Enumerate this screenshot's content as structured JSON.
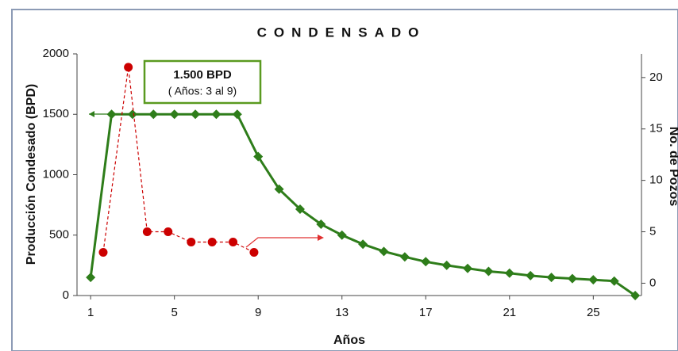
{
  "chart_data": {
    "type": "line",
    "title": "CONDENSADO",
    "x_label": "Años",
    "y_label": "Producción Condesado (BPD)",
    "y2_label": "No. de Pozos",
    "annotations": [
      "1.500 BPD",
      "( Años: 3 al 9)"
    ],
    "xlim": [
      0.35,
      27.3
    ],
    "xticks": [
      1,
      5,
      9,
      13,
      17,
      21,
      25
    ],
    "ylim": [
      0,
      2000
    ],
    "yticks": [
      0,
      500,
      1000,
      1500,
      2000
    ],
    "y2lim": [
      -1.2,
      22.3
    ],
    "y2ticks": [
      0,
      5,
      10,
      15,
      20
    ],
    "series": [
      {
        "color": "#2e7d1a",
        "marker": "diamond",
        "dashed": false,
        "x": [
          1,
          2,
          3,
          4,
          5,
          6,
          7,
          8,
          9,
          10,
          11,
          12,
          13,
          14,
          15,
          16,
          17,
          18,
          19,
          20,
          21,
          22,
          23,
          24,
          25,
          26,
          27
        ],
        "values": [
          150,
          1500,
          1500,
          1500,
          1500,
          1500,
          1500,
          1500,
          1150,
          880,
          715,
          590,
          500,
          425,
          365,
          320,
          280,
          250,
          225,
          200,
          185,
          165,
          150,
          140,
          130,
          120,
          0
        ]
      },
      {
        "color": "#cc0000",
        "marker": "circle",
        "dashed": true,
        "axis": "y2",
        "x": [
          1.6,
          2.8,
          3.7,
          4.7,
          5.8,
          6.8,
          7.8,
          8.8
        ],
        "values": [
          3,
          21,
          5,
          5,
          4,
          4,
          4,
          3
        ]
      }
    ]
  }
}
